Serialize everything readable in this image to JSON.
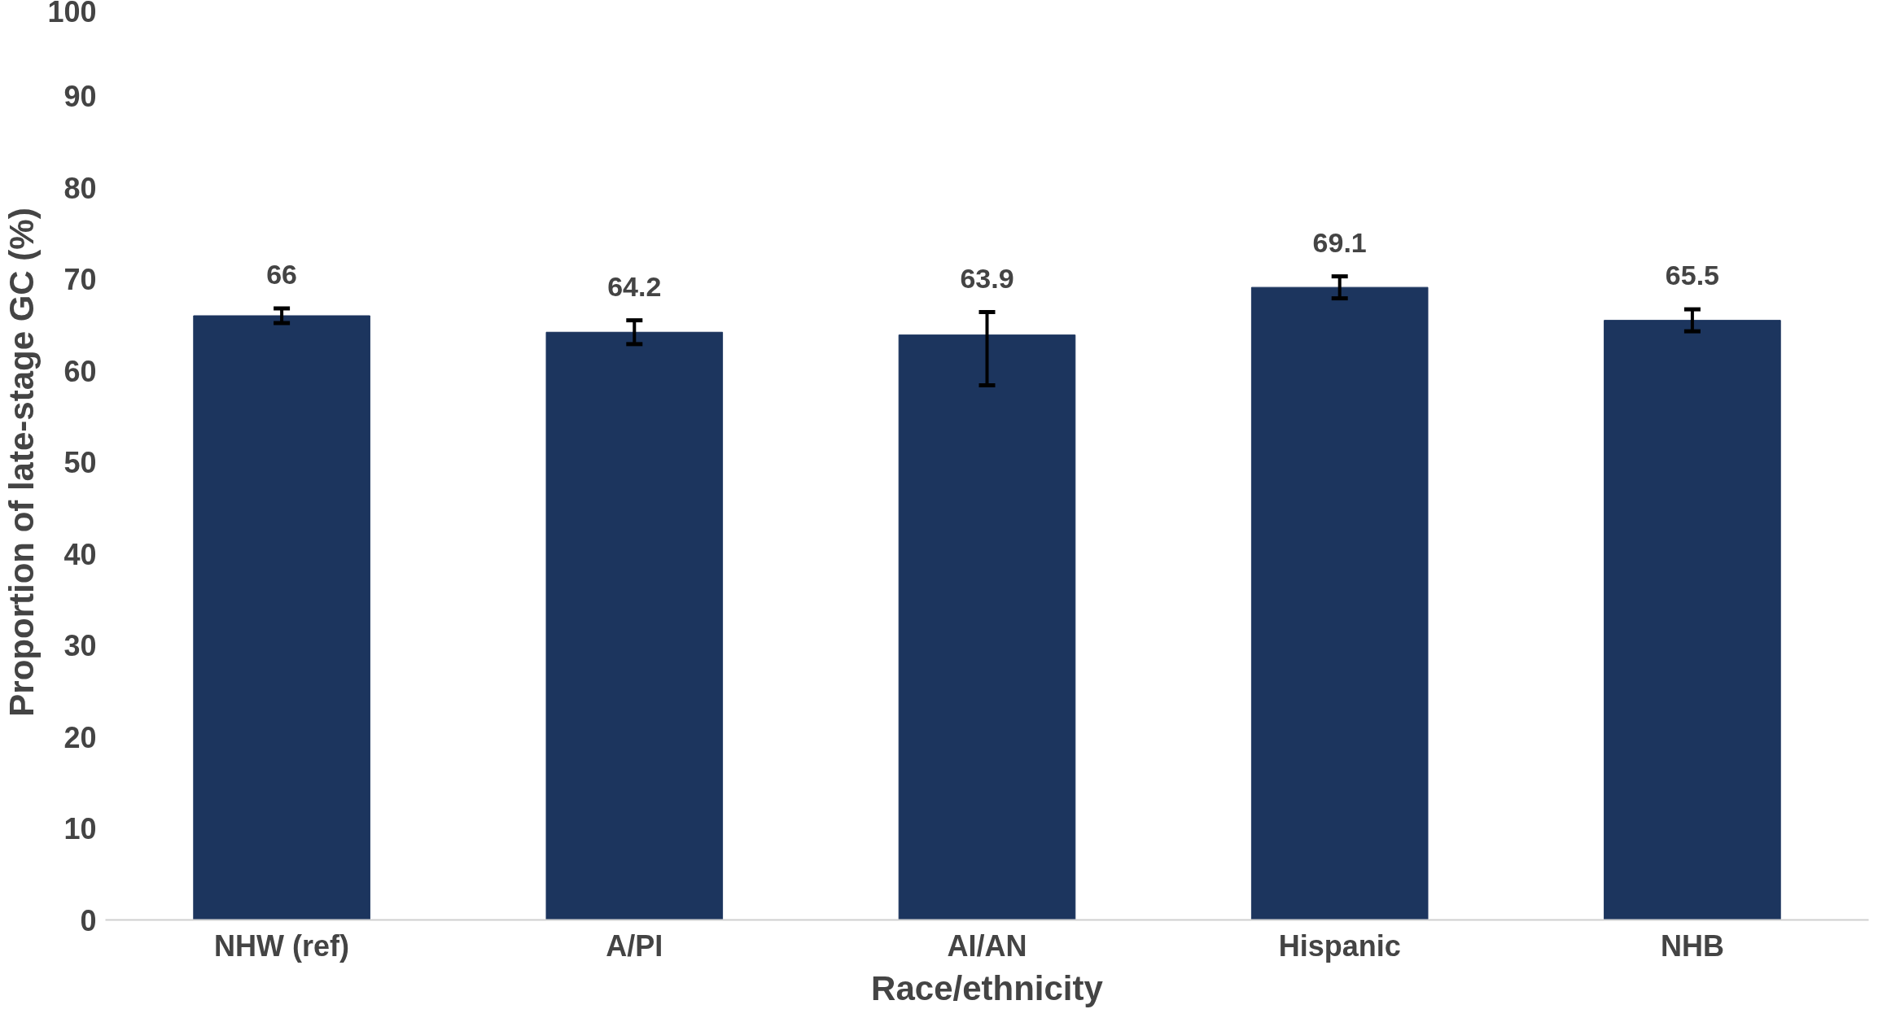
{
  "chart_data": {
    "type": "bar",
    "xlabel": "Race/ethnicity",
    "ylabel": "Proportion of late-stage GC (%)",
    "categories": [
      "NHW (ref)",
      "A/PI",
      "AI/AN",
      "Hispanic",
      "NHB"
    ],
    "values": [
      66,
      64.2,
      63.9,
      69.1,
      65.5
    ],
    "errors": [
      0.8,
      1.3,
      [
        58.4,
        66.4
      ],
      1.2,
      1.2
    ],
    "color": "#1c355e",
    "data_labels": true,
    "grid": false,
    "ylim": [
      0,
      100
    ],
    "yticks": [
      0,
      10,
      20,
      30,
      40,
      50,
      60,
      70,
      80,
      90,
      100
    ]
  }
}
